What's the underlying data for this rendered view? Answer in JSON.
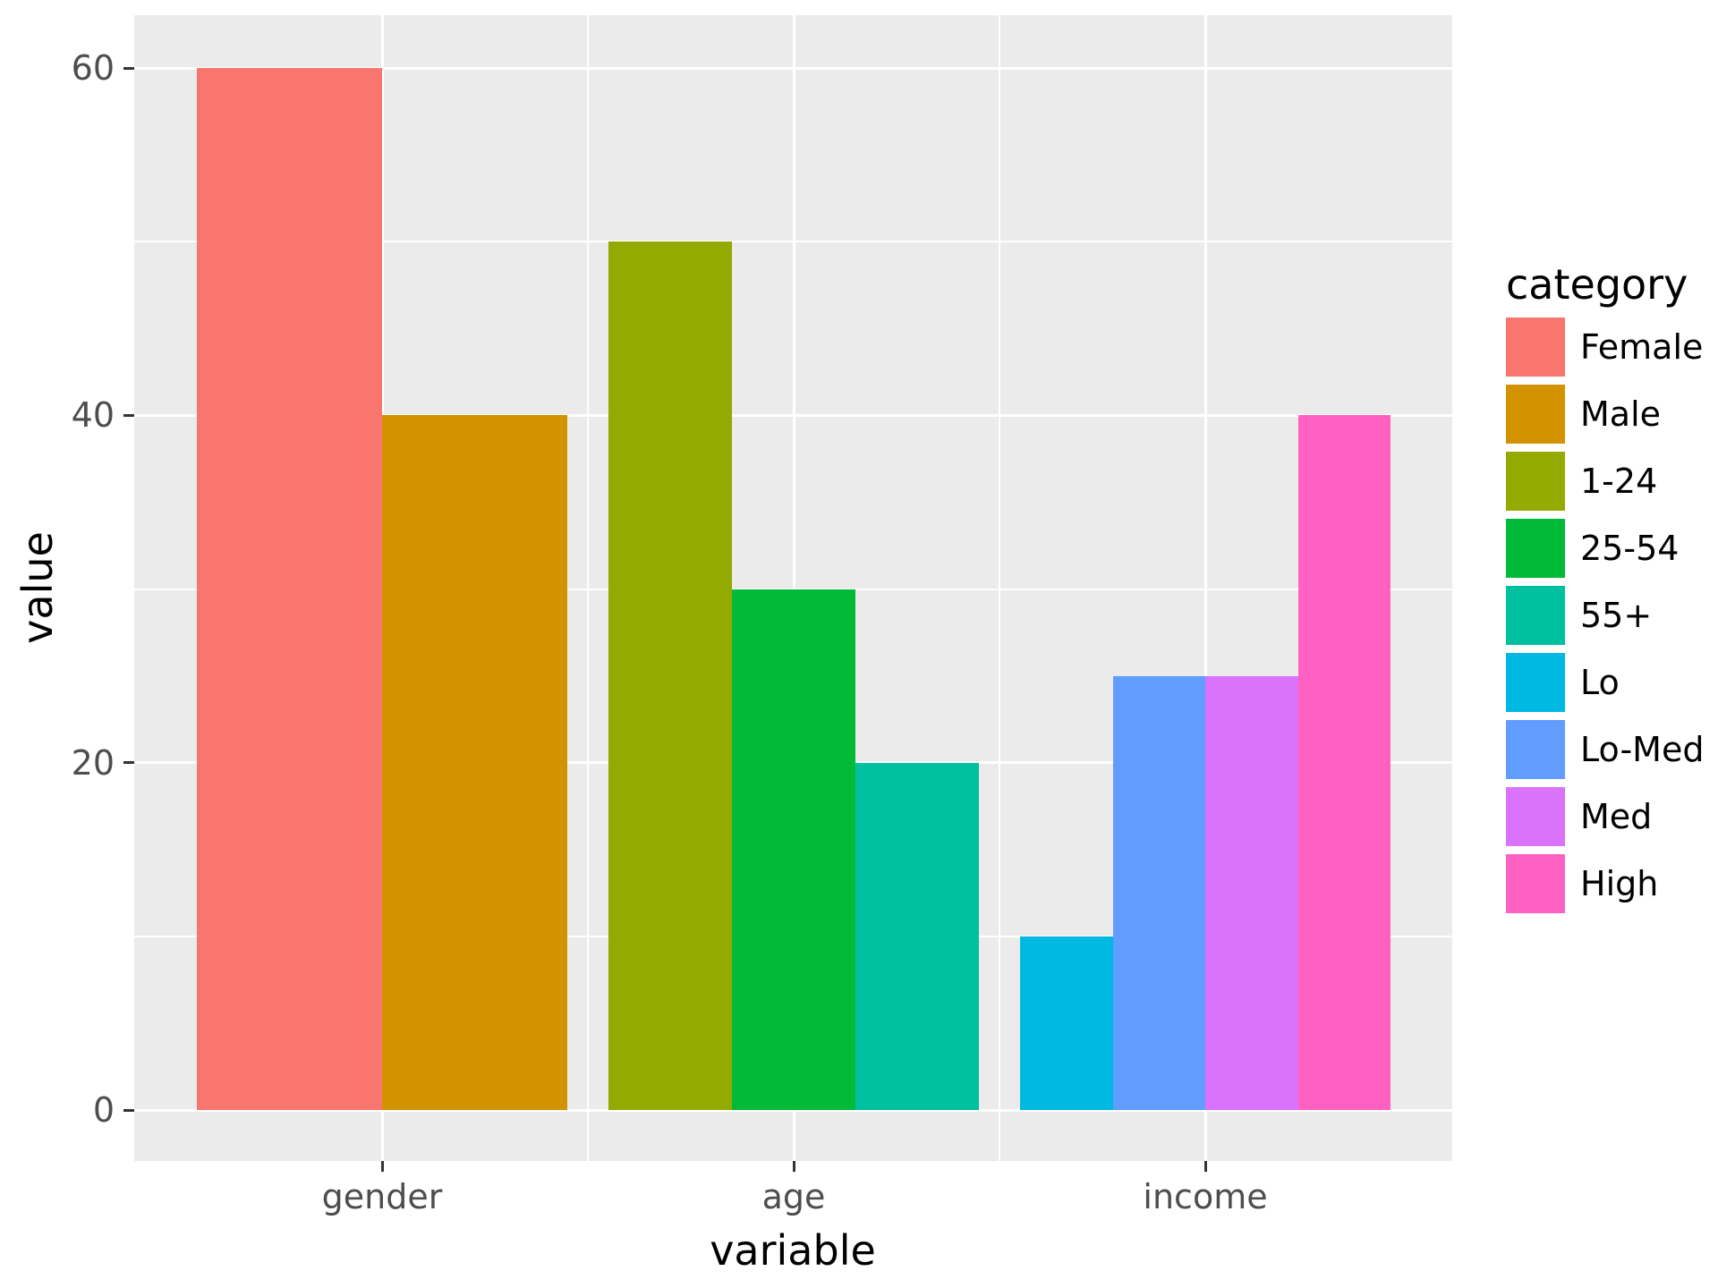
{
  "chart_data": {
    "type": "bar",
    "title": "",
    "xlabel": "variable",
    "ylabel": "value",
    "legend_title": "category",
    "legend_position": "right",
    "grid": true,
    "ylim": [
      0,
      60
    ],
    "yticks": [
      0,
      20,
      40,
      60
    ],
    "yticks_minor": [
      10,
      30,
      50
    ],
    "categories": [
      "gender",
      "age",
      "income"
    ],
    "groups": [
      {
        "category": "gender",
        "bars": [
          {
            "name": "Female",
            "value": 60,
            "color": "#F8766D"
          },
          {
            "name": "Male",
            "value": 40,
            "color": "#D39200"
          }
        ]
      },
      {
        "category": "age",
        "bars": [
          {
            "name": "1-24",
            "value": 50,
            "color": "#93AA00"
          },
          {
            "name": "25-54",
            "value": 30,
            "color": "#00BA38"
          },
          {
            "name": "55+",
            "value": 20,
            "color": "#00C19F"
          }
        ]
      },
      {
        "category": "income",
        "bars": [
          {
            "name": "Lo",
            "value": 10,
            "color": "#00B9E3"
          },
          {
            "name": "Lo-Med",
            "value": 25,
            "color": "#619CFF"
          },
          {
            "name": "Med",
            "value": 25,
            "color": "#DB72FB"
          },
          {
            "name": "High",
            "value": 40,
            "color": "#FF61C3"
          }
        ]
      }
    ],
    "legend_entries": [
      {
        "label": "Female",
        "color": "#F8766D"
      },
      {
        "label": "Male",
        "color": "#D39200"
      },
      {
        "label": "1-24",
        "color": "#93AA00"
      },
      {
        "label": "25-54",
        "color": "#00BA38"
      },
      {
        "label": "55+",
        "color": "#00C19F"
      },
      {
        "label": "Lo",
        "color": "#00B9E3"
      },
      {
        "label": "Lo-Med",
        "color": "#619CFF"
      },
      {
        "label": "Med",
        "color": "#DB72FB"
      },
      {
        "label": "High",
        "color": "#FF61C3"
      }
    ],
    "colors": {
      "panel_background": "#EBEBEB",
      "grid": "#FFFFFF",
      "tick_mark": "#333333",
      "tick_label": "#4D4D4D",
      "title_text": "#000000"
    }
  }
}
